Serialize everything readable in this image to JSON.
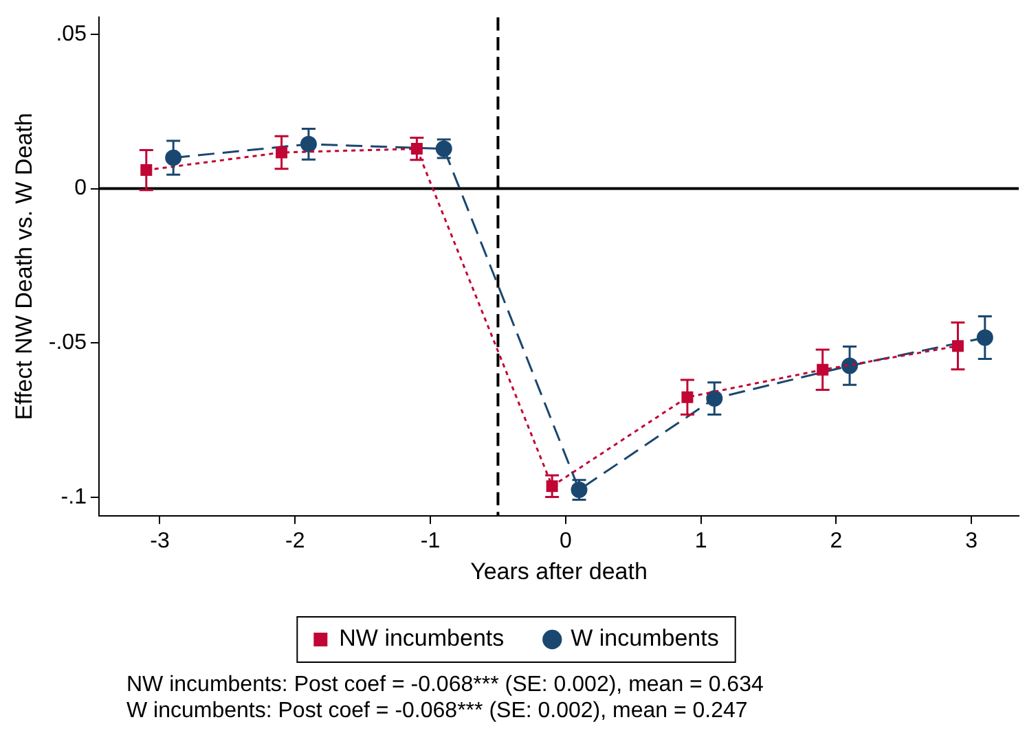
{
  "chart_data": {
    "type": "line",
    "xlabel": "Years after death",
    "ylabel": "Effect NW Death vs. W Death",
    "xlim": [
      -3.45,
      3.35
    ],
    "xticks": [
      -3,
      -2,
      -1,
      0,
      1,
      2,
      3
    ],
    "ylim": [
      -0.106,
      0.0555
    ],
    "yticks": [
      {
        "value": 0.05,
        "label": ".05"
      },
      0,
      {
        "value": -0.05,
        "label": "-.05"
      },
      {
        "value": -0.1,
        "label": "-.1"
      }
    ],
    "grid": false,
    "legend": "bottom",
    "series": [
      {
        "name": "NW incumbents",
        "color": "#c10534",
        "marker": "square",
        "line_style": "dotted",
        "x": [
          -3.1,
          -2.1,
          -1.1,
          -0.1,
          0.9,
          1.9,
          2.9
        ],
        "values": [
          0.006,
          0.0117,
          0.0129,
          -0.0964,
          -0.0676,
          -0.0587,
          -0.051
        ],
        "errors": [
          0.0065,
          0.0053,
          0.0036,
          0.0035,
          0.0056,
          0.0065,
          0.0076
        ]
      },
      {
        "name": "W incumbents",
        "color": "#1a476f",
        "marker": "circle",
        "line_style": "dashed",
        "x": [
          -2.9,
          -1.9,
          -0.9,
          0.1,
          1.1,
          2.1,
          3.1
        ],
        "values": [
          0.01,
          0.0144,
          0.0129,
          -0.0976,
          -0.068,
          -0.0574,
          -0.0483
        ],
        "errors": [
          0.0055,
          0.005,
          0.003,
          0.0032,
          0.0052,
          0.0062,
          0.0069
        ]
      }
    ],
    "ref_lines": [
      {
        "axis": "y",
        "value": 0,
        "color": "#000000",
        "line_style": "solid"
      },
      {
        "axis": "x",
        "value": -0.5,
        "color": "#000000",
        "line_style": "dashed"
      }
    ],
    "annotations": [
      "NW incumbents: Post coef = -0.068*** (SE: 0.002), mean = 0.634",
      "W incumbents: Post coef = -0.068*** (SE: 0.002), mean = 0.247"
    ]
  }
}
